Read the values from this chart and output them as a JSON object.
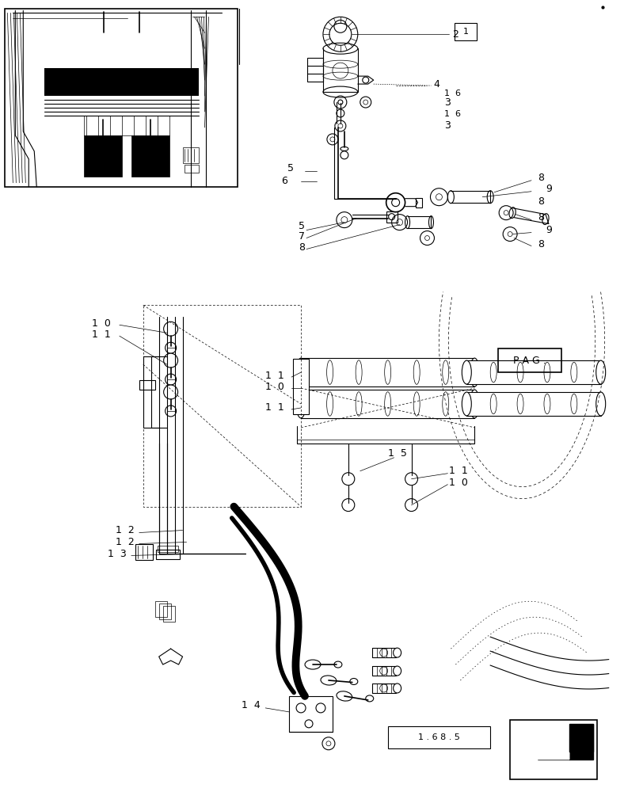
{
  "bg_color": "#ffffff",
  "line_color": "#000000",
  "fig_width": 7.88,
  "fig_height": 10.0,
  "dpi": 100,
  "gray": "#888888",
  "lightgray": "#cccccc"
}
